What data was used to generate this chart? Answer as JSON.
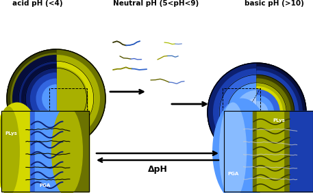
{
  "title_left": "acid pH (<4)",
  "title_center": "Neutral pH (5<pH<9)",
  "title_right": "basic pH (>10)",
  "delta_ph_label": "ΔpH",
  "pga_label": "PGA",
  "plys_label": "PLys",
  "bg_color": "#ffffff",
  "yg_bright": "#d4d800",
  "yg_mid": "#a8b000",
  "yg_dark": "#6b7200",
  "yg_darkest": "#3a3e00",
  "blue_darkest": "#060d3a",
  "blue_dark": "#0d2070",
  "blue_mid": "#1a3eb0",
  "blue_bright": "#3366e0",
  "blue_light": "#5599ff",
  "blue_pale": "#88bbff",
  "blue_vlight": "#aaccff",
  "black": "#000000",
  "white": "#ffffff"
}
